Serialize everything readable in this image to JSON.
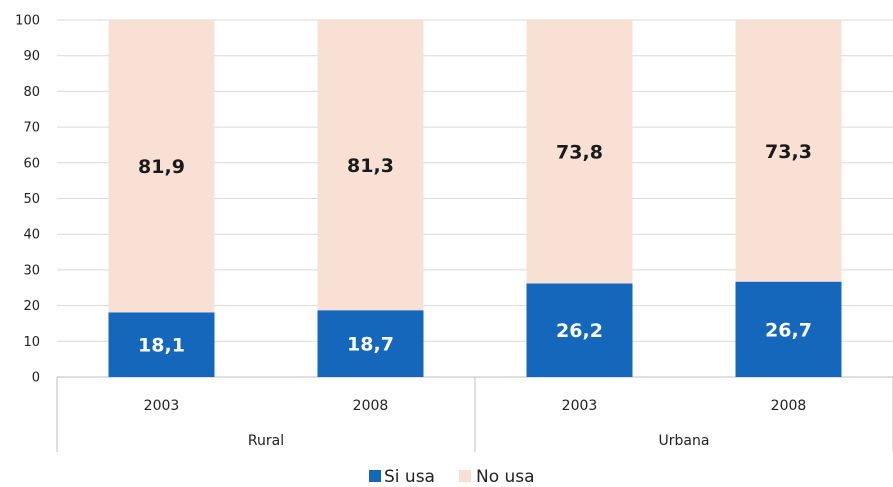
{
  "chart_data": {
    "type": "bar",
    "stacked": true,
    "groups": [
      "Rural",
      "Urbana"
    ],
    "categories": [
      "2003",
      "2008",
      "2003",
      "2008"
    ],
    "category_groups": [
      "Rural",
      "Rural",
      "Urbana",
      "Urbana"
    ],
    "series": [
      {
        "name": "Si usa",
        "color": "#1467bb",
        "label_color": "#ffffff",
        "values": [
          18.1,
          18.7,
          26.2,
          26.7
        ],
        "labels": [
          "18,1",
          "18,7",
          "26,2",
          "26,7"
        ]
      },
      {
        "name": "No usa",
        "color": "#f8e1d4",
        "label_color": "#1a1a1a",
        "values": [
          81.9,
          81.3,
          73.8,
          73.3
        ],
        "labels": [
          "81,9",
          "81,3",
          "73,8",
          "73,3"
        ]
      }
    ],
    "ylim": [
      0,
      100
    ],
    "yticks": [
      0,
      10,
      20,
      30,
      40,
      50,
      60,
      70,
      80,
      90,
      100
    ],
    "grid": true,
    "legend_position": "bottom",
    "title": "",
    "xlabel": "",
    "ylabel": ""
  }
}
